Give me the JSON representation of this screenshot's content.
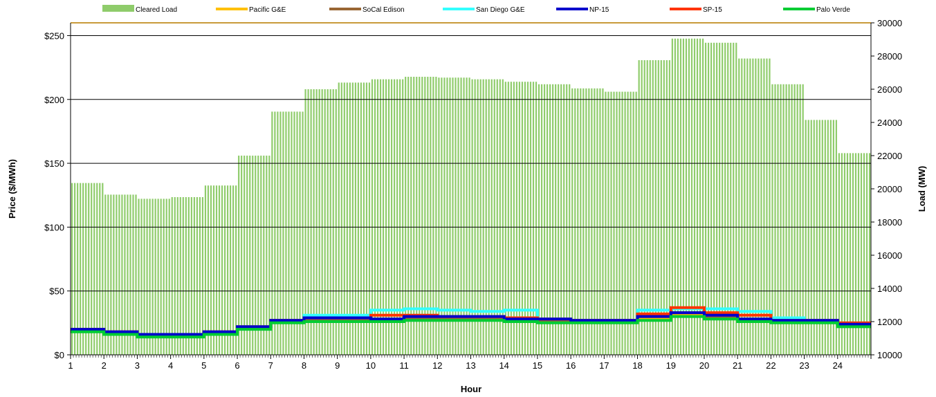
{
  "chart_data": {
    "type": "bar",
    "xlabel": "Hour",
    "ylabel": "Price ($/MWh)",
    "y2label": "Load (MW)",
    "x_ticks": [
      "1",
      "2",
      "3",
      "4",
      "5",
      "6",
      "7",
      "8",
      "9",
      "10",
      "11",
      "12",
      "13",
      "14",
      "15",
      "16",
      "17",
      "18",
      "19",
      "20",
      "21",
      "22",
      "23",
      "24"
    ],
    "ylim": [
      0,
      260
    ],
    "y_ticks": [
      0,
      50,
      100,
      150,
      200,
      250
    ],
    "y_tick_labels": [
      "$0",
      "$50",
      "$100",
      "$150",
      "$200",
      "$250"
    ],
    "y2lim": [
      10000,
      30000
    ],
    "y2_ticks": [
      10000,
      12000,
      14000,
      16000,
      18000,
      20000,
      22000,
      24000,
      26000,
      28000,
      30000
    ],
    "y2_tick_labels": [
      "10000",
      "12000",
      "14000",
      "16000",
      "18000",
      "20000",
      "22000",
      "24000",
      "26000",
      "28000",
      "30000"
    ],
    "grid": "horizontal",
    "legend_position": "top",
    "intervals_per_hour": 12,
    "hours": [
      1,
      2,
      3,
      4,
      5,
      6,
      7,
      8,
      9,
      10,
      11,
      12,
      13,
      14,
      15,
      16,
      17,
      18,
      19,
      20,
      21,
      22,
      23,
      24
    ],
    "load_series": {
      "name": "Cleared Load",
      "color": "#8fcc6b",
      "axis": "right",
      "values": [
        20350,
        19650,
        19400,
        19500,
        20200,
        22000,
        24650,
        26000,
        26400,
        26600,
        26750,
        26700,
        26600,
        26450,
        26300,
        26050,
        25850,
        27750,
        29050,
        28800,
        27850,
        26300,
        24150,
        22150
      ]
    },
    "series": [
      {
        "name": "Pacific G&E",
        "color": "#ffc000",
        "values": [
          19,
          17,
          15,
          15,
          17,
          21,
          26,
          27,
          27,
          27,
          28,
          28,
          28,
          27,
          26,
          26,
          26,
          29,
          32,
          29,
          27,
          26,
          26,
          23
        ]
      },
      {
        "name": "SoCal Edison",
        "color": "#996633",
        "values": [
          20,
          18,
          16,
          16,
          18,
          22,
          27,
          28,
          28,
          28,
          29,
          29,
          29,
          28,
          27,
          27,
          27,
          30,
          33,
          30,
          28,
          27,
          27,
          24
        ]
      },
      {
        "name": "San Diego G&E",
        "color": "#33ffff",
        "values": [
          20,
          18,
          16,
          16,
          18,
          22,
          27,
          31,
          31,
          35,
          36,
          35,
          34,
          35,
          28,
          27,
          27,
          35,
          36,
          36,
          34,
          29,
          27,
          25
        ]
      },
      {
        "name": "NP-15",
        "color": "#0000cc",
        "values": [
          20,
          18,
          16,
          16,
          18,
          22,
          27,
          29,
          29,
          28,
          30,
          30,
          30,
          28,
          28,
          27,
          27,
          30,
          33,
          31,
          28,
          27,
          27,
          24
        ]
      },
      {
        "name": "SP-15",
        "color": "#ff3300",
        "values": [
          20,
          18,
          16,
          16,
          18,
          22,
          27,
          29,
          29,
          31,
          31,
          30,
          30,
          29,
          28,
          27,
          27,
          32,
          37,
          33,
          31,
          27,
          27,
          25
        ]
      },
      {
        "name": "Palo Verde",
        "color": "#00cc33",
        "values": [
          18,
          16,
          14,
          14,
          16,
          20,
          25,
          26,
          26,
          26,
          27,
          27,
          27,
          26,
          25,
          25,
          25,
          27,
          30,
          28,
          26,
          25,
          25,
          22
        ]
      }
    ]
  }
}
